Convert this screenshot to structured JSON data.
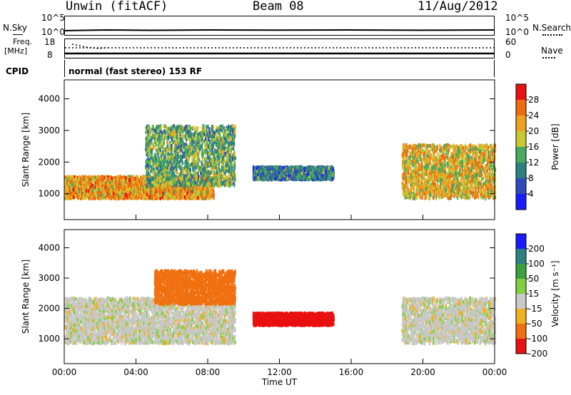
{
  "header": {
    "station": "Unwin (fitACF)",
    "beam": "Beam 08",
    "date": "11/Aug/2012"
  },
  "top_panels": {
    "nsky_label": "N.Sky",
    "nsky_ticks": [
      "10^5",
      "10^0"
    ],
    "nsearch_label": "N.Search",
    "nsearch_ticks": [
      "10^5",
      "10^0"
    ],
    "freq_label_1": "Freq.",
    "freq_label_2": "[MHz]",
    "freq_ticks": [
      "18",
      "8"
    ],
    "nave_label": "Nave",
    "nave_ticks": [
      "60",
      "0"
    ],
    "cpid_label": "CPID",
    "cpid_text": "normal (fast stereo) 153 RF"
  },
  "chart_data": [
    {
      "type": "heatmap",
      "title": "",
      "xlabel": "",
      "ylabel": "Slant Range [km]",
      "x_ticks": [
        "00:00",
        "04:00",
        "08:00",
        "12:00",
        "16:00",
        "20:00",
        "00:00"
      ],
      "y_ticks": [
        1000,
        2000,
        3000,
        4000
      ],
      "xlim_hours": [
        0,
        24
      ],
      "ylim_km": [
        180,
        4600
      ],
      "colorbar": {
        "label": "Power [dB]",
        "ticks": [
          4,
          8,
          12,
          16,
          20,
          24,
          28
        ],
        "range": [
          0,
          32
        ],
        "colors": [
          "#1a1aff",
          "#2e4ab8",
          "#2e7f80",
          "#4aa860",
          "#c8c832",
          "#f0a020",
          "#f06a10",
          "#e81010"
        ]
      },
      "echo_regions": [
        {
          "name": "morning band",
          "t_start": 0.0,
          "t_end": 8.3,
          "range_start_km": 900,
          "range_end_km": 1600,
          "power_db": 22
        },
        {
          "name": "rising arc",
          "t_start": 4.5,
          "t_end": 9.5,
          "range_start_km": 1300,
          "range_end_km": 3200,
          "power_db": 14
        },
        {
          "name": "noon streak",
          "t_start": 10.5,
          "t_end": 15.0,
          "range_start_km": 1500,
          "range_end_km": 1900,
          "power_db": 10
        },
        {
          "name": "evening arc",
          "t_start": 18.8,
          "t_end": 24.0,
          "range_start_km": 900,
          "range_end_km": 2600,
          "power_db": 20
        }
      ]
    },
    {
      "type": "heatmap",
      "title": "",
      "xlabel": "Time UT",
      "ylabel": "Slant Range [km]",
      "x_ticks": [
        "00:00",
        "04:00",
        "08:00",
        "12:00",
        "16:00",
        "20:00",
        "00:00"
      ],
      "y_ticks": [
        1000,
        2000,
        3000,
        4000
      ],
      "xlim_hours": [
        0,
        24
      ],
      "ylim_km": [
        180,
        4600
      ],
      "colorbar": {
        "label": "Velocity [m s⁻¹]",
        "ticks": [
          200,
          100,
          50,
          15,
          -15,
          -50,
          -100,
          -200
        ],
        "colors": [
          "#1a1aff",
          "#2e7f80",
          "#3aa040",
          "#80d040",
          "#c8c8c8",
          "#f0b020",
          "#f07010",
          "#e81010"
        ]
      },
      "echo_regions": [
        {
          "name": "ground scatter band",
          "t_start": 0.0,
          "t_end": 9.5,
          "range_start_km": 900,
          "range_end_km": 2400,
          "velocity_ms": 0
        },
        {
          "name": "morning high range",
          "t_start": 5.0,
          "t_end": 9.5,
          "range_start_km": 2200,
          "range_end_km": 3300,
          "velocity_ms": -80
        },
        {
          "name": "noon streak",
          "t_start": 10.5,
          "t_end": 15.0,
          "range_start_km": 1500,
          "range_end_km": 1900,
          "velocity_ms": -200
        },
        {
          "name": "evening arc",
          "t_start": 18.8,
          "t_end": 24.0,
          "range_start_km": 900,
          "range_end_km": 2400,
          "velocity_ms": 0
        }
      ]
    }
  ]
}
